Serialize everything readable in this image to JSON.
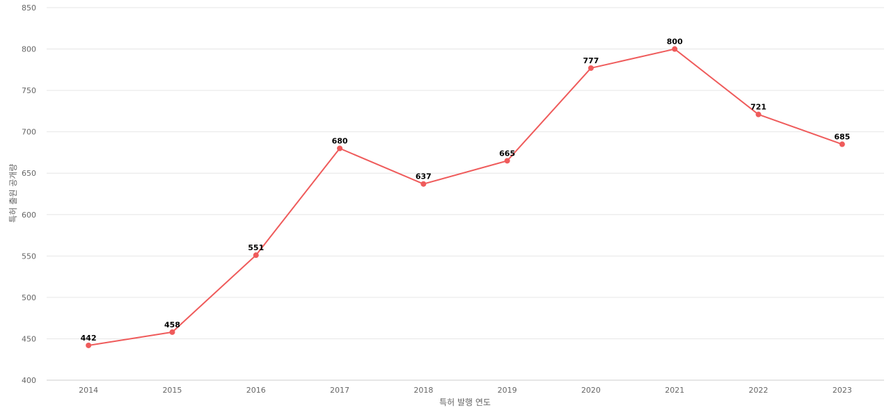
{
  "chart_data": {
    "type": "line",
    "title": "",
    "xlabel": "특허 발행 연도",
    "ylabel": "특허 출원 공개량",
    "x": [
      "2014",
      "2015",
      "2016",
      "2017",
      "2018",
      "2019",
      "2020",
      "2021",
      "2022",
      "2023"
    ],
    "series": [
      {
        "values": [
          442,
          458,
          551,
          680,
          637,
          665,
          777,
          800,
          721,
          685
        ],
        "color": "#ef5b5b"
      }
    ],
    "ylim": [
      400,
      850
    ],
    "yticks": [
      400,
      450,
      500,
      550,
      600,
      650,
      700,
      750,
      800,
      850
    ],
    "grid": true,
    "data_labels": true,
    "legend": "none"
  }
}
